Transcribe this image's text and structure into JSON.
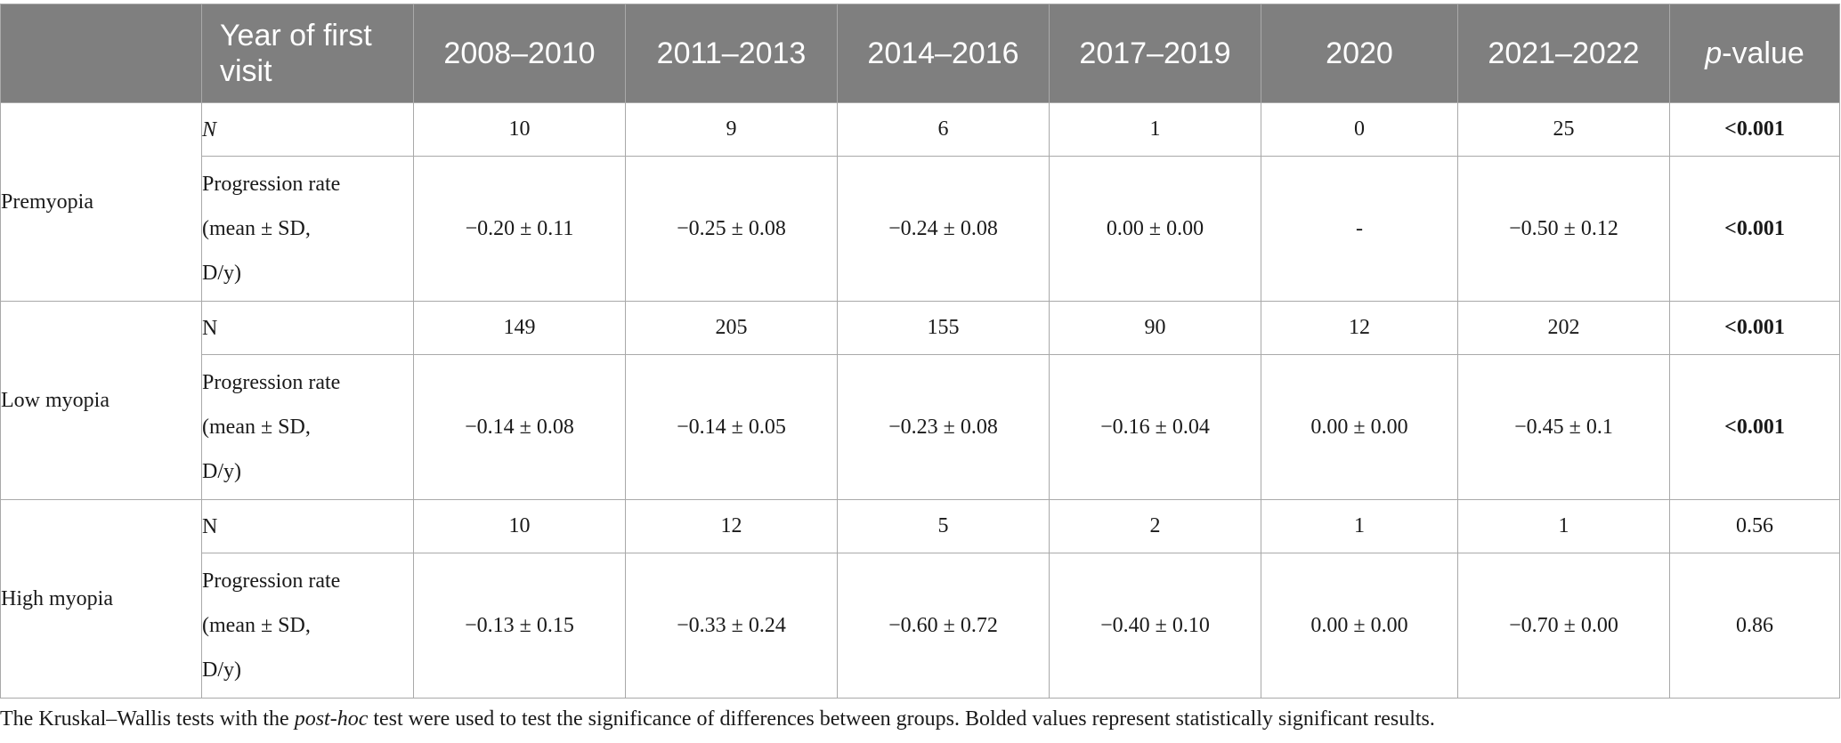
{
  "table": {
    "header": {
      "year_label": "Year of first visit",
      "periods": [
        "2008–2010",
        "2011–2013",
        "2014–2016",
        "2017–2019",
        "2020",
        "2021–2022"
      ],
      "pvalue_italic": "p",
      "pvalue_rest": "-value"
    },
    "groups": [
      {
        "name": "Premyopia",
        "n_label": "N",
        "n_label_italic": true,
        "n_values": [
          "10",
          "9",
          "6",
          "1",
          "0",
          "25"
        ],
        "n_pvalue": "<0.001",
        "n_pvalue_bold": true,
        "rate_label": [
          "Progression rate",
          "(mean ± SD,",
          "D/y)"
        ],
        "rate_values": [
          "−0.20 ± 0.11",
          "−0.25 ± 0.08",
          "−0.24 ± 0.08",
          "0.00 ± 0.00",
          "-",
          "−0.50 ± 0.12"
        ],
        "rate_pvalue": "<0.001",
        "rate_pvalue_bold": true
      },
      {
        "name": "Low myopia",
        "n_label": "N",
        "n_label_italic": false,
        "n_values": [
          "149",
          "205",
          "155",
          "90",
          "12",
          "202"
        ],
        "n_pvalue": "<0.001",
        "n_pvalue_bold": true,
        "rate_label": [
          "Progression rate",
          "(mean ± SD,",
          "D/y)"
        ],
        "rate_values": [
          "−0.14 ± 0.08",
          "−0.14 ± 0.05",
          "−0.23 ± 0.08",
          "−0.16 ± 0.04",
          "0.00 ± 0.00",
          "−0.45 ± 0.1"
        ],
        "rate_pvalue": "<0.001",
        "rate_pvalue_bold": true
      },
      {
        "name": "High myopia",
        "n_label": "N",
        "n_label_italic": false,
        "n_values": [
          "10",
          "12",
          "5",
          "2",
          "1",
          "1"
        ],
        "n_pvalue": "0.56",
        "n_pvalue_bold": false,
        "rate_label": [
          "Progression rate",
          "(mean ± SD,",
          "D/y)"
        ],
        "rate_values": [
          "−0.13 ± 0.15",
          "−0.33 ± 0.24",
          "−0.60 ± 0.72",
          "−0.40 ± 0.10",
          "0.00 ± 0.00",
          "−0.70 ± 0.00"
        ],
        "rate_pvalue": "0.86",
        "rate_pvalue_bold": false
      }
    ]
  },
  "footnote": {
    "part1": "The Kruskal–Wallis tests with the ",
    "italic": "post-hoc",
    "part2": " test were used to test the significance of differences between groups. Bolded values represent statistically significant results."
  }
}
